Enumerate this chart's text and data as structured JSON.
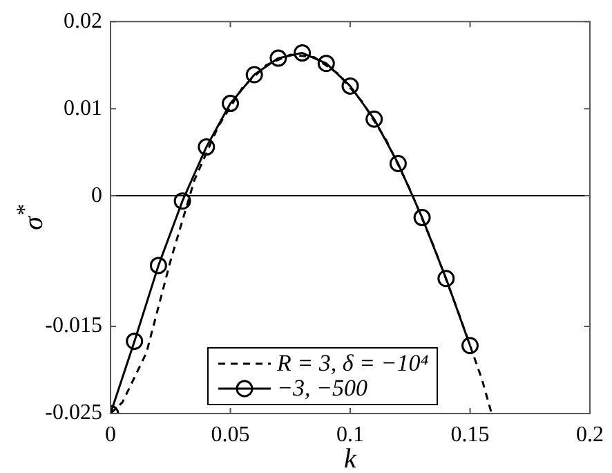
{
  "chart_data": {
    "type": "line",
    "xlabel": "k",
    "ylabel": "σ$^{*}$",
    "xlim": [
      0,
      0.2
    ],
    "xticks": [
      0,
      0.05,
      0.1,
      0.15,
      0.2
    ],
    "ylim": [
      -0.025,
      0.02
    ],
    "yticks": [
      -0.025,
      -0.015,
      0,
      0.01,
      0.02
    ],
    "grid": false,
    "legend": "bottom",
    "ref_lines": [
      {
        "axis": "y",
        "value": 0,
        "color": "#000000"
      }
    ],
    "series": [
      {
        "name": "R = 3, δ = −10⁴",
        "color": "#000000",
        "line_style": "dashed",
        "marker": "none",
        "x": [
          0,
          0.005,
          0.015,
          0.025,
          0.035,
          0.045,
          0.055,
          0.065,
          0.075,
          0.085,
          0.095,
          0.105,
          0.115,
          0.125,
          0.135,
          0.145,
          0.155,
          0.159
        ],
        "values": [
          -0.025,
          -0.0237,
          -0.018,
          -0.0075,
          0.0018,
          0.008,
          0.0124,
          0.015,
          0.0162,
          0.0159,
          0.014,
          0.0108,
          0.0064,
          0.0007,
          -0.0059,
          -0.0133,
          -0.0211,
          -0.025
        ]
      },
      {
        "name": "−3, −500",
        "color": "#000000",
        "line_style": "solid",
        "marker": "circle",
        "x": [
          0,
          0.01,
          0.02,
          0.03,
          0.04,
          0.05,
          0.06,
          0.07,
          0.08,
          0.09,
          0.1,
          0.11,
          0.12,
          0.13,
          0.14,
          0.15
        ],
        "values": [
          -0.025,
          -0.0167,
          -0.008,
          -0.0006,
          0.0056,
          0.0106,
          0.0139,
          0.0158,
          0.0164,
          0.0152,
          0.0126,
          0.0088,
          0.0037,
          -0.0025,
          -0.0095,
          -0.0172
        ]
      }
    ]
  }
}
